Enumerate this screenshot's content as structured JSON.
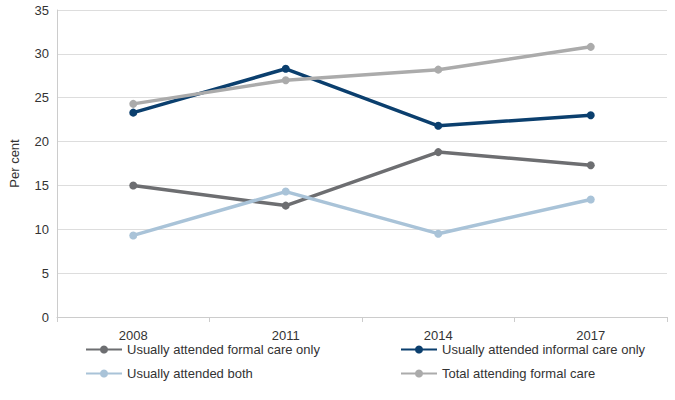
{
  "chart_data": {
    "type": "line",
    "categories": [
      "2008",
      "2011",
      "2014",
      "2017"
    ],
    "y_label": "Per cent",
    "ylim": [
      0,
      35
    ],
    "yticks": [
      0,
      5,
      10,
      15,
      20,
      25,
      30,
      35
    ],
    "grid": true,
    "legend": "bottom",
    "marker": "circle",
    "line_style": "solid",
    "series": [
      {
        "name": "Usually attended formal care only",
        "color": "#6d6e71",
        "values": [
          15.0,
          12.7,
          18.8,
          17.3
        ]
      },
      {
        "name": "Usually attended informal care only",
        "color": "#0b3f6e",
        "values": [
          23.3,
          28.3,
          21.8,
          23.0
        ]
      },
      {
        "name": "Usually attended both",
        "color": "#a9c3d8",
        "values": [
          9.3,
          14.3,
          9.5,
          13.4
        ]
      },
      {
        "name": "Total attending formal care",
        "color": "#ababab",
        "values": [
          24.3,
          27.0,
          28.2,
          30.8
        ]
      }
    ]
  }
}
